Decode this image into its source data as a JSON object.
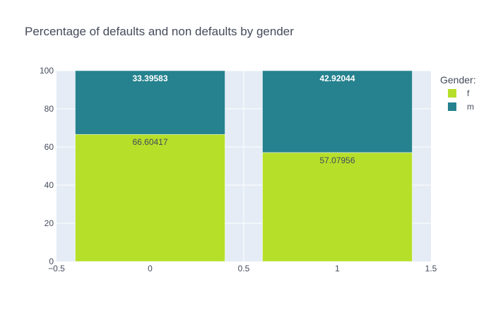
{
  "chart_data": {
    "type": "bar",
    "barmode": "stack",
    "title": "Percentage of defaults and non defaults by gender",
    "x": [
      0,
      1
    ],
    "xlim": [
      -0.5,
      1.5
    ],
    "ylim": [
      0,
      100
    ],
    "x_ticks": [
      -0.5,
      0,
      0.5,
      1,
      1.5
    ],
    "x_tick_labels": [
      "−0.5",
      "0",
      "0.5",
      "1",
      "1.5"
    ],
    "y_ticks": [
      0,
      20,
      40,
      60,
      80,
      100
    ],
    "y_tick_labels": [
      "0",
      "20",
      "40",
      "60",
      "80",
      "100"
    ],
    "grid": true,
    "legend_title": "Gender:",
    "legend_position": "top-right",
    "series": [
      {
        "name": "f",
        "color": "#b5df29",
        "values": [
          66.60417,
          57.07956
        ],
        "labels": [
          "66.60417",
          "57.07956"
        ],
        "label_color": "#444a5a"
      },
      {
        "name": "m",
        "color": "#25828e",
        "values": [
          33.39583,
          42.92044
        ],
        "labels": [
          "33.39583",
          "42.92044"
        ],
        "label_color": "#ffffff"
      }
    ],
    "plot_background": "#e5ecf6"
  }
}
